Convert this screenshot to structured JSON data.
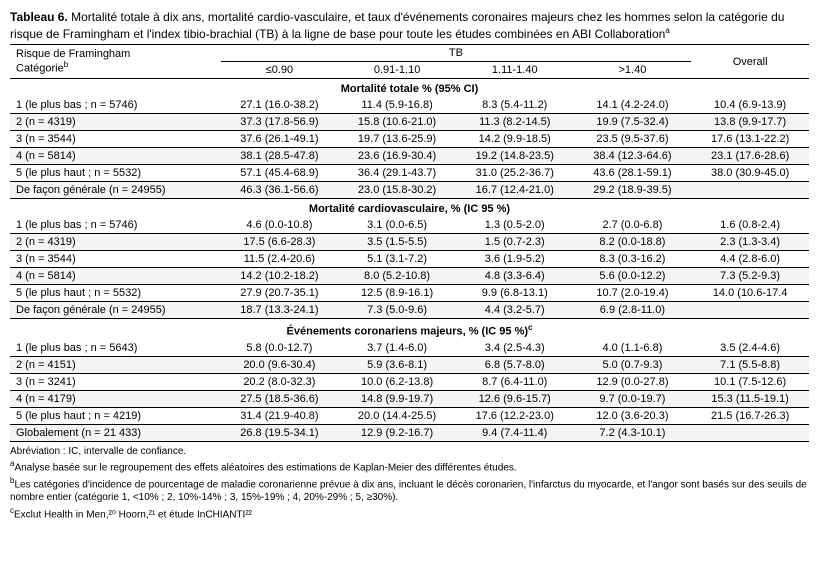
{
  "title_bold": "Tableau 6.",
  "title_rest": "Mortalité totale à dix ans, mortalité cardio-vasculaire, et taux d'événements coronaires majeurs chez les hommes selon la catégorie du risque de Framingham et l'index tibio-brachial (TB) à la ligne de base pour toute les études combinées en ABI Collaboration",
  "title_sup": "a",
  "header": {
    "risk_col_1": "Risque de Framingham",
    "risk_col_2": "Catégorie",
    "risk_col_sup": "b",
    "tb_label": "TB",
    "tb_cols": [
      "≤0.90",
      "0.91-1.10",
      "1.11-1.40",
      ">1.40"
    ],
    "overall": "Overall"
  },
  "sections": [
    {
      "heading": "Mortalité totale % (95% CI)",
      "rows": [
        {
          "label": "1 (le plus bas ; n = 5746)",
          "c": [
            "27.1 (16.0-38.2)",
            "11.4 (5.9-16.8)",
            "8.3 (5.4-11.2)",
            "14.1 (4.2-24.0)",
            "10.4 (6.9-13.9)"
          ]
        },
        {
          "label": "2 (n = 4319)",
          "c": [
            "37.3 (17.8-56.9)",
            "15.8 (10.6-21.0)",
            "11.3 (8.2-14.5)",
            "19.9 (7.5-32.4)",
            "13.8 (9.9-17.7)"
          ]
        },
        {
          "label": "3 (n = 3544)",
          "c": [
            "37.6 (26.1-49.1)",
            "19.7 (13.6-25.9)",
            "14.2 (9.9-18.5)",
            "23.5 (9.5-37.6)",
            "17.6 (13.1-22.2)"
          ]
        },
        {
          "label": "4 (n = 5814)",
          "c": [
            "38.1 (28.5-47.8)",
            "23.6 (16.9-30.4)",
            "19.2 (14.8-23.5)",
            "38.4 (12.3-64.6)",
            "23.1 (17.6-28.6)"
          ]
        },
        {
          "label": "5 (le plus haut ; n = 5532)",
          "c": [
            "57.1 (45.4-68.9)",
            "36.4 (29.1-43.7)",
            "31.0 (25.2-36.7)",
            "43.6 (28.1-59.1)",
            "38.0 (30.9-45.0)"
          ]
        },
        {
          "label": "De façon générale (n = 24955)",
          "c": [
            "46.3 (36.1-56.6)",
            "23.0 (15.8-30.2)",
            "16.7 (12.4-21.0)",
            "29.2 (18.9-39.5)",
            ""
          ]
        }
      ]
    },
    {
      "heading": "Mortalité cardiovasculaire, % (IC 95 %)",
      "rows": [
        {
          "label": "1 (le plus bas ; n = 5746)",
          "c": [
            "4.6 (0.0-10.8)",
            "3.1 (0.0-6.5)",
            "1.3 (0.5-2.0)",
            "2.7 (0.0-6.8)",
            "1.6 (0.8-2.4)"
          ]
        },
        {
          "label": "2 (n = 4319)",
          "c": [
            "17.5 (6.6-28.3)",
            "3.5 (1.5-5.5)",
            "1.5 (0.7-2.3)",
            "8.2 (0.0-18.8)",
            "2.3 (1.3-3.4)"
          ]
        },
        {
          "label": "3 (n = 3544)",
          "c": [
            "11.5 (2.4-20.6)",
            "5.1 (3.1-7.2)",
            "3.6 (1.9-5.2)",
            "8.3 (0.3-16.2)",
            "4.4 (2.8-6.0)"
          ]
        },
        {
          "label": "4 (n = 5814)",
          "c": [
            "14.2 (10.2-18.2)",
            "8.0 (5.2-10.8)",
            "4.8 (3.3-6.4)",
            "5.6 (0.0-12.2)",
            "7.3 (5.2-9.3)"
          ]
        },
        {
          "label": "5 (le plus haut ; n = 5532)",
          "c": [
            "27.9 (20.7-35.1)",
            "12.5 (8.9-16.1)",
            "9.9 (6.8-13.1)",
            "10.7 (2.0-19.4)",
            "14.0 (10.6-17.4"
          ]
        },
        {
          "label": "De façon générale (n = 24955)",
          "c": [
            "18.7 (13.3-24.1)",
            "7.3 (5.0-9.6)",
            "4.4 (3.2-5.7)",
            "6.9 (2.8-11.0)",
            ""
          ]
        }
      ]
    },
    {
      "heading": "Événements coronariens majeurs, % (IC 95 %)",
      "heading_sup": "c",
      "rows": [
        {
          "label": "1 (le plus bas ; n = 5643)",
          "c": [
            "5.8 (0.0-12.7)",
            "3.7 (1.4-6.0)",
            "3.4 (2.5-4.3)",
            "4.0 (1.1-6.8)",
            "3.5 (2.4-4.6)"
          ]
        },
        {
          "label": "2 (n = 4151)",
          "c": [
            "20.0 (9.6-30.4)",
            "5.9 (3.6-8.1)",
            "6.8 (5.7-8.0)",
            "5.0 (0.7-9.3)",
            "7.1 (5.5-8.8)"
          ]
        },
        {
          "label": "3 (n = 3241)",
          "c": [
            "20.2 (8.0-32.3)",
            "10.0 (6.2-13.8)",
            "8.7 (6.4-11.0)",
            "12.9 (0.0-27.8)",
            "10.1 (7.5-12.6)"
          ]
        },
        {
          "label": "4 (n = 4179)",
          "c": [
            "27.5 (18.5-36.6)",
            "14.8 (9.9-19.7)",
            "12.6 (9.6-15.7)",
            "9.7 (0.0-19.7)",
            "15.3 (11.5-19.1)"
          ]
        },
        {
          "label": "5 (le plus haut ; n = 4219)",
          "c": [
            "31.4 (21.9-40.8)",
            "20.0 (14.4-25.5)",
            "17.6 (12.2-23.0)",
            "12.0 (3.6-20.3)",
            "21.5 (16.7-26.3)"
          ]
        },
        {
          "label": "Globalement (n = 21 433)",
          "c": [
            "26.8 (19.5-34.1)",
            "12.9 (9.2-16.7)",
            "9.4 (7.4-11.4)",
            "7.2 (4.3-10.1)",
            ""
          ]
        }
      ]
    }
  ],
  "footnotes": [
    {
      "text": "Abréviation : IC, intervalle de confiance."
    },
    {
      "sup": "a",
      "text": "Analyse basée sur le regroupement des effets aléatoires des estimations de Kaplan-Meier des différentes études."
    },
    {
      "sup": "b",
      "text": "Les catégories d'incidence de pourcentage de maladie coronarienne prévue à dix ans, incluant le décès coronarien, l'infarctus du myocarde, et l'angor sont basés sur des seuils de nombre entier (catégorie 1, <10% ; 2, 10%-14% ; 3, 15%-19% ; 4, 20%-29% ; 5, ≥30%)."
    },
    {
      "sup": "c",
      "text": "Exclut Health in Men,²⁰ Hoorn,²¹ et étude InCHIANTI²²"
    }
  ]
}
